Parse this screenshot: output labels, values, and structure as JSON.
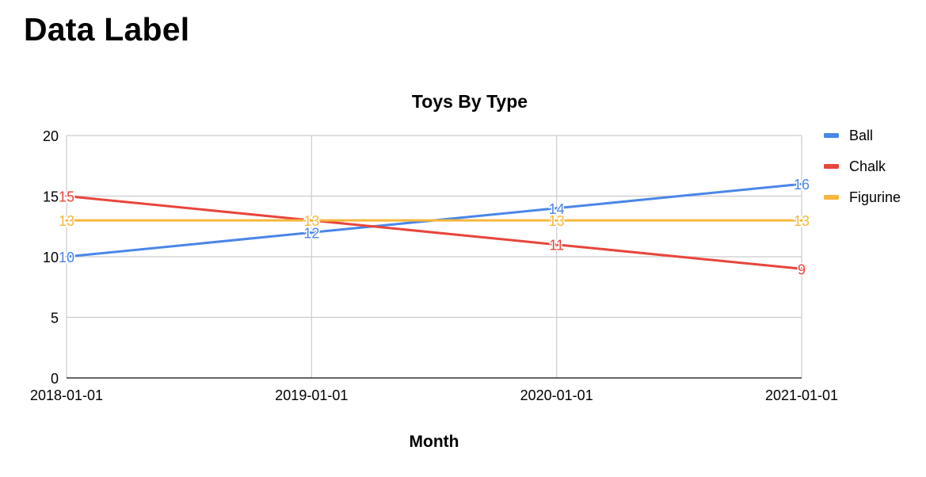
{
  "page": {
    "heading": "Data Label"
  },
  "chart_data": {
    "type": "line",
    "title": "Toys By Type",
    "xlabel": "Month",
    "ylabel": "",
    "categories": [
      "2018-01-01",
      "2019-01-01",
      "2020-01-01",
      "2021-01-01"
    ],
    "ylim": [
      0,
      20
    ],
    "yticks": [
      0,
      5,
      10,
      15,
      20
    ],
    "grid": true,
    "legend_position": "right",
    "data_labels": true,
    "series": [
      {
        "name": "Ball",
        "color": "#4a86e8",
        "values": [
          10,
          12,
          14,
          16
        ]
      },
      {
        "name": "Chalk",
        "color": "#e8453c",
        "values": [
          15,
          13,
          11,
          9
        ]
      },
      {
        "name": "Figurine",
        "color": "#f6b73c",
        "values": [
          13,
          13,
          13,
          13
        ]
      }
    ]
  }
}
